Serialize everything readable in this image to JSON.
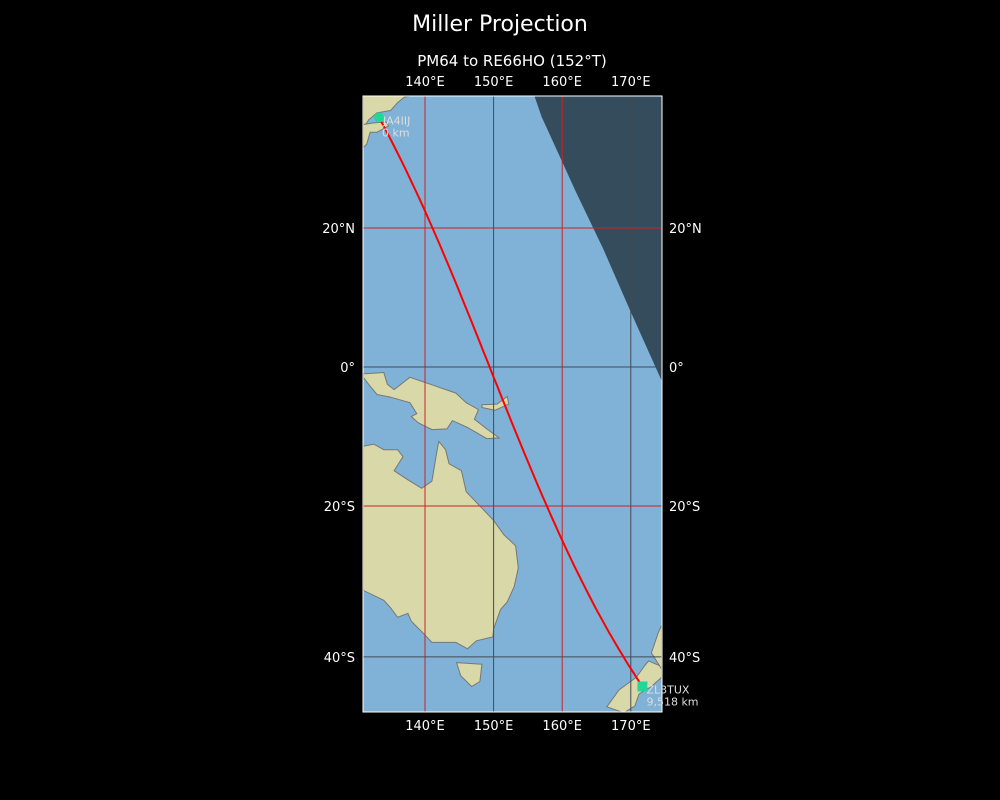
{
  "title": "Miller Projection",
  "subtitle": "PM64 to RE66HO (152°T)",
  "map": {
    "projection": "miller",
    "extent": {
      "lon": [
        131,
        174.5
      ],
      "lat": [
        -47,
        37.5
      ]
    },
    "gridlines": {
      "lon": [
        140,
        150,
        160,
        170
      ],
      "lat": [
        20,
        0,
        -20,
        -40
      ]
    },
    "lon_labels": [
      "140°E",
      "150°E",
      "160°E",
      "170°E"
    ],
    "lat_labels": [
      "20°N",
      "0°",
      "20°S",
      "40°S"
    ],
    "colors": {
      "ocean": "#7fb2d6",
      "land": "#d8d8a8",
      "path": "#ff0000",
      "grid_red": "#cc2222",
      "grid_dark": "#444a55",
      "night": "#2e4050",
      "marker": "#1fd89a"
    },
    "start": {
      "call": "JA4IIJ",
      "dist": "0 km",
      "lon": 133.3,
      "lat": 34.9
    },
    "end": {
      "call": "ZL3TUX",
      "dist": "9,518 km",
      "lon": 171.7,
      "lat": -43.6
    }
  }
}
